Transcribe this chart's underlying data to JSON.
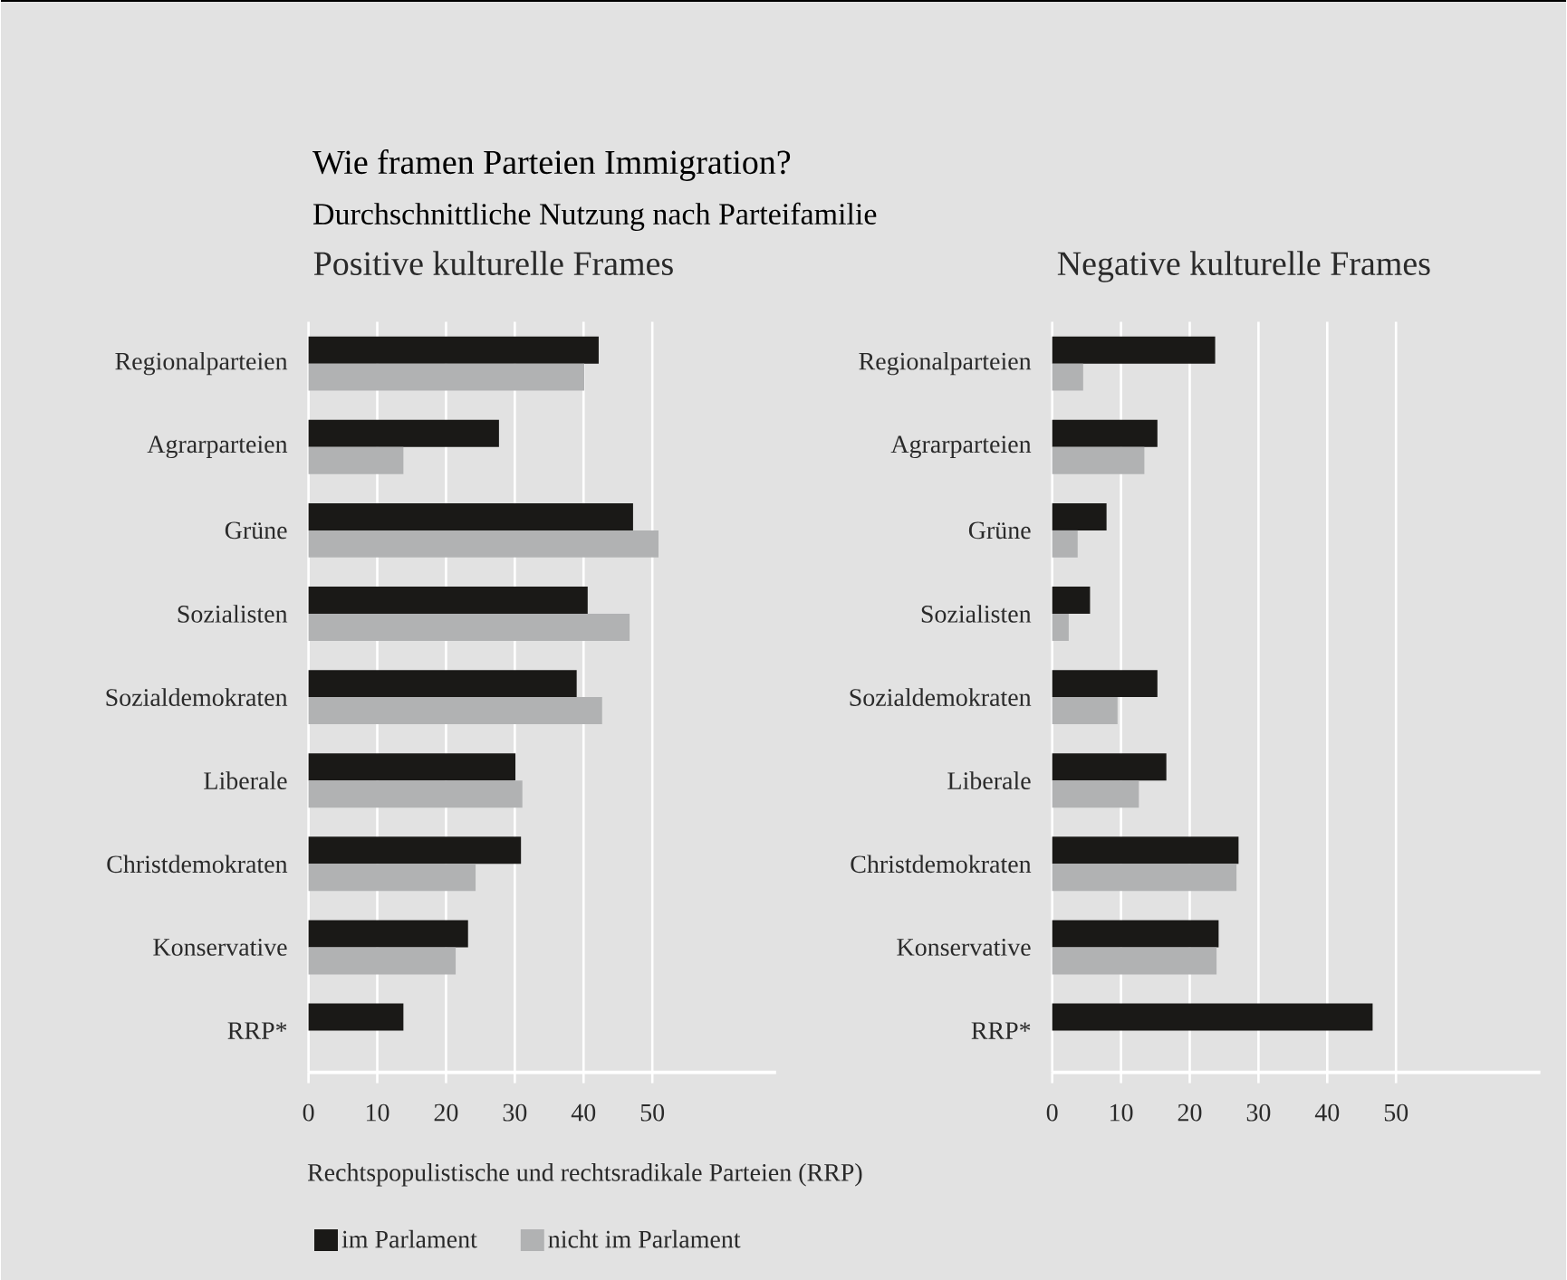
{
  "chart_data": [
    {
      "type": "bar",
      "orientation": "horizontal",
      "title": "Positive kulturelle Frames",
      "annotations": [
        "Wie framen Parteien Immigration?",
        "Durchschnittliche Nutzung nach Parteifamilie"
      ],
      "legend_title": "Rechtspopulistische und rechtsradikale Parteien (RRP)",
      "legend": "bottom left",
      "grid": "x",
      "xlim": [
        0,
        68
      ],
      "xticks": [
        0,
        10,
        20,
        30,
        40,
        50
      ],
      "categories": [
        "Regionalparteien",
        "Agrarparteien",
        "Grüne",
        "Sozialisten",
        "Sozialdemokraten",
        "Liberale",
        "Christdemokraten",
        "Konservative",
        "RRP*"
      ],
      "series": [
        {
          "name": "im Parlament",
          "color": "#1a1917",
          "values": [
            42.2,
            27.7,
            47.2,
            40.6,
            39.0,
            30.1,
            30.9,
            23.2,
            13.8
          ]
        },
        {
          "name": "nicht im Parlament",
          "color": "#b1b2b3",
          "values": [
            40.1,
            13.8,
            50.9,
            46.7,
            42.7,
            31.1,
            24.3,
            21.4,
            null
          ]
        }
      ]
    },
    {
      "type": "bar",
      "orientation": "horizontal",
      "title": "Negative kulturelle Frames",
      "grid": "x",
      "xlim": [
        0,
        71
      ],
      "xticks": [
        0,
        10,
        20,
        30,
        40,
        50
      ],
      "categories": [
        "Regionalparteien",
        "Agrarparteien",
        "Grüne",
        "Sozialisten",
        "Sozialdemokraten",
        "Liberale",
        "Christdemokraten",
        "Konservative",
        "RRP*"
      ],
      "series": [
        {
          "color": "#1a1917",
          "values": [
            23.7,
            15.3,
            7.9,
            5.5,
            15.3,
            16.6,
            27.1,
            24.2,
            46.6
          ]
        },
        {
          "color": "#b1b2b3",
          "values": [
            4.5,
            13.4,
            3.7,
            2.4,
            9.5,
            12.6,
            26.8,
            23.9,
            null
          ]
        }
      ]
    }
  ]
}
